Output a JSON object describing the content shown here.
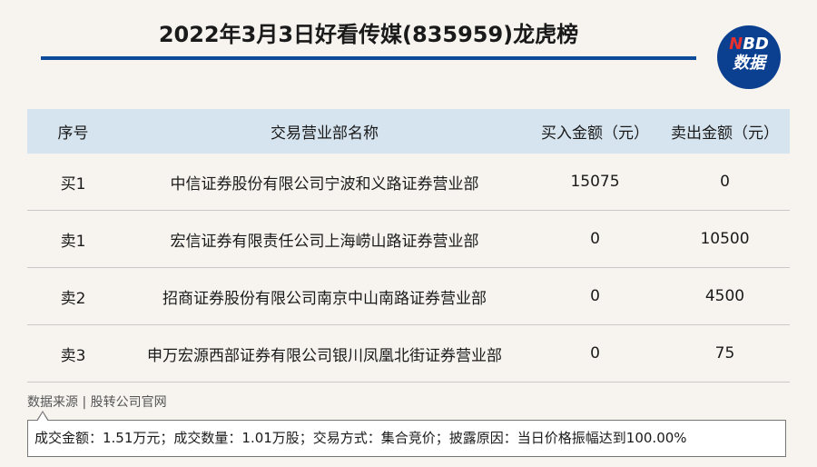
{
  "title": "2022年3月3日好看传媒(835959)龙虎榜",
  "logo": {
    "brand_n": "N",
    "brand_rest": "BD",
    "sub": "数据",
    "accent": "#e8312f",
    "bg": "#0b3f8f"
  },
  "table": {
    "headers": [
      "序号",
      "交易营业部名称",
      "买入金额（元）",
      "卖出金额（元）"
    ],
    "rows": [
      [
        "买1",
        "中信证券股份有限公司宁波和义路证券营业部",
        "15075",
        "0"
      ],
      [
        "卖1",
        "宏信证券有限责任公司上海崂山路证券营业部",
        "0",
        "10500"
      ],
      [
        "卖2",
        "招商证券股份有限公司南京中山南路证券营业部",
        "0",
        "4500"
      ],
      [
        "卖3",
        "申万宏源西部证券有限公司银川凤凰北街证券营业部",
        "0",
        "75"
      ]
    ]
  },
  "source": "数据来源 | 股转公司官网",
  "note": "成交金额：1.51万元；成交数量：1.01万股；交易方式：集合竞价；披露原因：当日价格振幅达到100.00%"
}
